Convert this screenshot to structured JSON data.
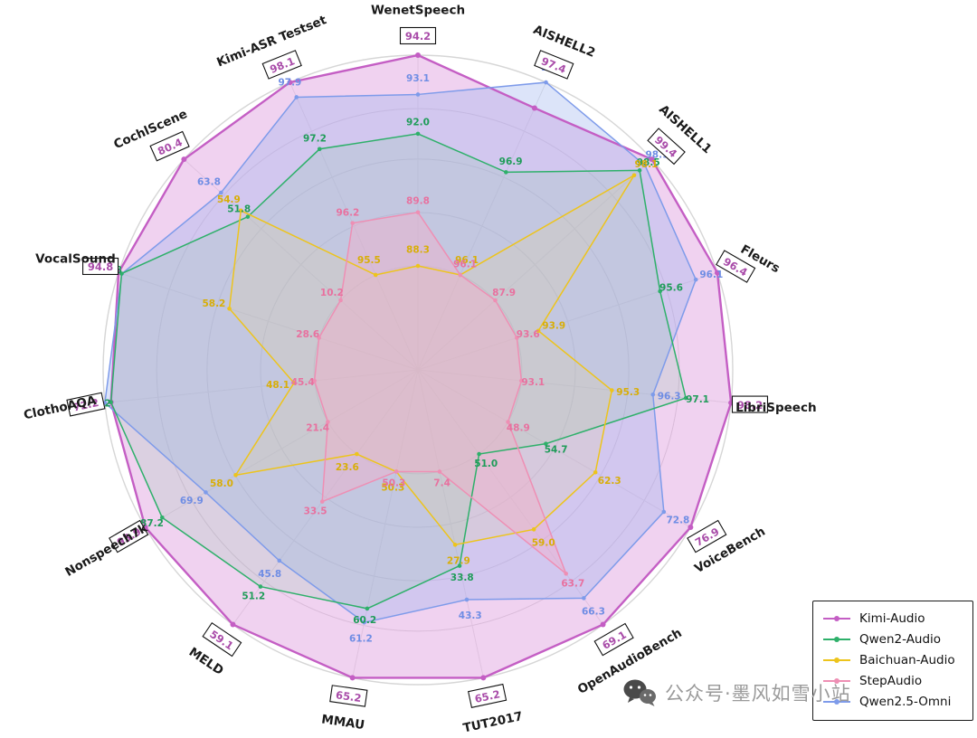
{
  "chart_data": {
    "type": "radar",
    "title": "",
    "categories": [
      "WenetSpeech",
      "AISHELL2",
      "AISHELL1",
      "Fleurs",
      "LibriSpeech",
      "VoiceBench",
      "OpenAudioBench",
      "TUT2017",
      "MMAU",
      "MELD",
      "Nonspeech7k",
      "ClothoAQA",
      "VocalSound",
      "CochlScene",
      "Kimi-ASR Testset"
    ],
    "series": [
      {
        "name": "Kimi-Audio",
        "color": "#c45ec4",
        "label_color": "#a94ca9",
        "fill": "#dd9bdd",
        "fill_opacity": 0.45,
        "boxed_labels": true,
        "values": [
          94.2,
          97.4,
          99.4,
          96.4,
          98.2,
          76.9,
          69.1,
          65.2,
          65.2,
          59.1,
          93.9,
          72.2,
          94.8,
          80.4,
          98.1
        ]
      },
      {
        "name": "Qwen2.5-Omni",
        "color": "#7e9bea",
        "label_color": "#6f8de4",
        "fill": "#9fb4ef",
        "fill_opacity": 0.36,
        "boxed_labels": false,
        "values": [
          93.1,
          97.6,
          98.9,
          96.1,
          96.3,
          72.8,
          66.3,
          43.3,
          61.2,
          45.8,
          69.9,
          73.0,
          93.7,
          63.8,
          97.9
        ]
      },
      {
        "name": "Qwen2-Audio",
        "color": "#2eb06a",
        "label_color": "#1f9c59",
        "fill": "#86c9a6",
        "fill_opacity": 0.2,
        "boxed_labels": false,
        "values": [
          92.0,
          96.9,
          98.5,
          95.6,
          97.1,
          54.7,
          51.0,
          33.8,
          60.2,
          51.2,
          87.2,
          72.2,
          93.8,
          51.8,
          97.2
        ]
      },
      {
        "name": "Baichuan-Audio",
        "color": "#edc41c",
        "label_color": "#d8ae08",
        "fill": "#f3d977",
        "fill_opacity": 0.15,
        "boxed_labels": false,
        "values": [
          88.3,
          96.1,
          98.1,
          93.9,
          95.3,
          62.3,
          59.0,
          27.9,
          50.3,
          23.6,
          58.0,
          48.1,
          58.2,
          54.9,
          95.5
        ]
      },
      {
        "name": "StepAudio",
        "color": "#ee8fb4",
        "label_color": "#e8719f",
        "fill": "#f5afc9",
        "fill_opacity": 0.42,
        "boxed_labels": false,
        "values": [
          89.8,
          96.1,
          87.9,
          93.6,
          93.1,
          48.9,
          63.7,
          7.4,
          50.3,
          33.5,
          21.4,
          45.4,
          28.6,
          10.2,
          96.2
        ]
      }
    ],
    "legend": {
      "position": "bottom-right",
      "entries": [
        "Kimi-Audio",
        "Qwen2-Audio",
        "Baichuan-Audio",
        "StepAudio",
        "Qwen2.5-Omni"
      ]
    },
    "grid": "on",
    "radial_axis": "per-axis min-max normalized, tick labels hidden"
  },
  "watermark": {
    "icon": "wechat-icon",
    "text": "公众号·墨风如雪小站"
  }
}
